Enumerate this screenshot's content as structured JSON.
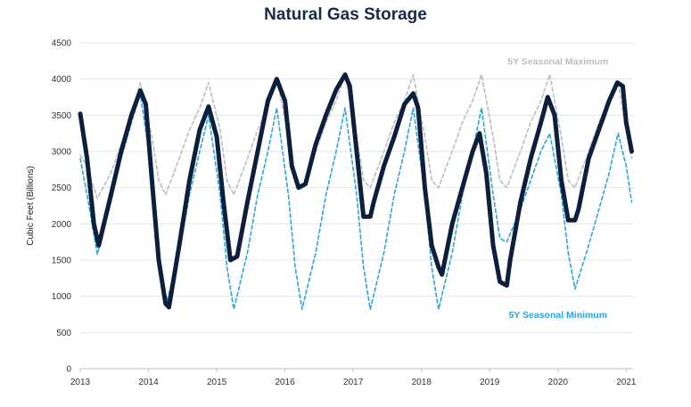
{
  "chart_data": {
    "type": "line",
    "title": "Natural Gas Storage",
    "xlabel": "",
    "ylabel": "Cubic Feet (Billions)",
    "xlim": [
      2013.0,
      2021.1
    ],
    "ylim": [
      0,
      4500
    ],
    "xticks": [
      2013,
      2014,
      2015,
      2016,
      2017,
      2018,
      2019,
      2020,
      2021
    ],
    "yticks": [
      0,
      500,
      1000,
      1500,
      2000,
      2500,
      3000,
      3500,
      4000,
      4500
    ],
    "grid": true,
    "legend": "none",
    "series": [
      {
        "name": "",
        "color": "#0d1f3c",
        "style": "solid-thick",
        "x": [
          2013.0,
          2013.1,
          2013.2,
          2013.27,
          2013.45,
          2013.6,
          2013.75,
          2013.88,
          2013.96,
          2014.05,
          2014.15,
          2014.25,
          2014.3,
          2014.45,
          2014.6,
          2014.75,
          2014.88,
          2015.0,
          2015.1,
          2015.2,
          2015.3,
          2015.45,
          2015.6,
          2015.75,
          2015.88,
          2016.0,
          2016.1,
          2016.2,
          2016.3,
          2016.45,
          2016.6,
          2016.75,
          2016.88,
          2016.95,
          2017.05,
          2017.15,
          2017.25,
          2017.3,
          2017.45,
          2017.6,
          2017.75,
          2017.88,
          2017.95,
          2018.05,
          2018.15,
          2018.25,
          2018.3,
          2018.45,
          2018.6,
          2018.75,
          2018.85,
          2018.95,
          2019.05,
          2019.15,
          2019.25,
          2019.3,
          2019.45,
          2019.6,
          2019.75,
          2019.85,
          2019.95,
          2020.05,
          2020.15,
          2020.25,
          2020.3,
          2020.45,
          2020.6,
          2020.75,
          2020.87,
          2020.95,
          2021.0,
          2021.08
        ],
        "values": [
          3520,
          2900,
          2000,
          1700,
          2400,
          3000,
          3500,
          3840,
          3650,
          2600,
          1500,
          900,
          850,
          1700,
          2600,
          3300,
          3620,
          3200,
          2300,
          1500,
          1550,
          2300,
          3000,
          3700,
          4000,
          3700,
          2800,
          2500,
          2550,
          3100,
          3500,
          3850,
          4060,
          3900,
          3000,
          2100,
          2100,
          2300,
          2800,
          3200,
          3650,
          3800,
          3600,
          2500,
          1700,
          1400,
          1300,
          2000,
          2500,
          3000,
          3250,
          2700,
          1700,
          1200,
          1150,
          1500,
          2300,
          2900,
          3400,
          3750,
          3500,
          2600,
          2050,
          2050,
          2200,
          2900,
          3300,
          3700,
          3950,
          3900,
          3400,
          3000
        ]
      },
      {
        "name": "5Y Seasonal Maximum",
        "color": "#b9bec6",
        "style": "dashed",
        "x": [
          2013.0,
          2013.1,
          2013.25,
          2013.45,
          2013.6,
          2013.75,
          2013.88,
          2014.05,
          2014.15,
          2014.25,
          2014.45,
          2014.6,
          2014.75,
          2014.88,
          2015.05,
          2015.15,
          2015.25,
          2015.45,
          2015.6,
          2015.75,
          2015.88,
          2016.05,
          2016.15,
          2016.25,
          2016.45,
          2016.6,
          2016.75,
          2016.88,
          2017.05,
          2017.15,
          2017.25,
          2017.45,
          2017.6,
          2017.75,
          2017.88,
          2018.05,
          2018.15,
          2018.25,
          2018.45,
          2018.6,
          2018.75,
          2018.88,
          2019.05,
          2019.15,
          2019.25,
          2019.45,
          2019.6,
          2019.75,
          2019.88,
          2020.05,
          2020.15,
          2020.25,
          2020.45,
          2020.6,
          2020.75,
          2020.88,
          2021.0,
          2021.08
        ],
        "values": [
          2950,
          2800,
          2350,
          2700,
          3100,
          3500,
          3950,
          3200,
          2600,
          2400,
          2900,
          3300,
          3600,
          3950,
          3300,
          2600,
          2400,
          2900,
          3300,
          3600,
          4000,
          3200,
          2600,
          2500,
          3000,
          3400,
          3700,
          4060,
          3200,
          2600,
          2500,
          3000,
          3400,
          3700,
          4060,
          3200,
          2600,
          2500,
          3000,
          3400,
          3700,
          4060,
          3200,
          2600,
          2500,
          3000,
          3400,
          3700,
          4060,
          3200,
          2600,
          2500,
          3000,
          3400,
          3700,
          3950,
          3300,
          2900
        ]
      },
      {
        "name": "5Y Seasonal Minimum",
        "color": "#2aa6d8",
        "style": "dashed",
        "x": [
          2013.0,
          2013.1,
          2013.25,
          2013.45,
          2013.6,
          2013.75,
          2013.88,
          2014.05,
          2014.15,
          2014.25,
          2014.45,
          2014.6,
          2014.75,
          2014.88,
          2015.05,
          2015.15,
          2015.25,
          2015.45,
          2015.6,
          2015.75,
          2015.88,
          2016.05,
          2016.15,
          2016.25,
          2016.45,
          2016.6,
          2016.75,
          2016.88,
          2017.05,
          2017.15,
          2017.25,
          2017.45,
          2017.6,
          2017.75,
          2017.88,
          2018.05,
          2018.15,
          2018.25,
          2018.45,
          2018.6,
          2018.75,
          2018.88,
          2019.05,
          2019.15,
          2019.25,
          2019.45,
          2019.6,
          2019.75,
          2019.88,
          2020.05,
          2020.15,
          2020.25,
          2020.45,
          2020.6,
          2020.75,
          2020.88,
          2021.0,
          2021.08
        ],
        "values": [
          2900,
          2400,
          1580,
          2300,
          2900,
          3400,
          3800,
          2700,
          1700,
          850,
          1600,
          2400,
          3000,
          3500,
          2400,
          1400,
          820,
          1600,
          2400,
          3000,
          3600,
          2400,
          1400,
          820,
          1600,
          2400,
          3000,
          3600,
          2400,
          1400,
          820,
          1600,
          2400,
          3000,
          3600,
          2400,
          1400,
          820,
          1600,
          2400,
          3000,
          3600,
          2400,
          1800,
          1750,
          2200,
          2600,
          3000,
          3250,
          2400,
          1600,
          1100,
          1700,
          2200,
          2700,
          3250,
          2800,
          2300
        ]
      }
    ],
    "annotations": [
      {
        "text": "5Y Seasonal Maximum",
        "x": 2020.0,
        "y": 4200,
        "color": "#b9bec6"
      },
      {
        "text": "5Y Seasonal Minimum",
        "x": 2020.0,
        "y": 700,
        "color": "#2aa6d8"
      }
    ]
  }
}
